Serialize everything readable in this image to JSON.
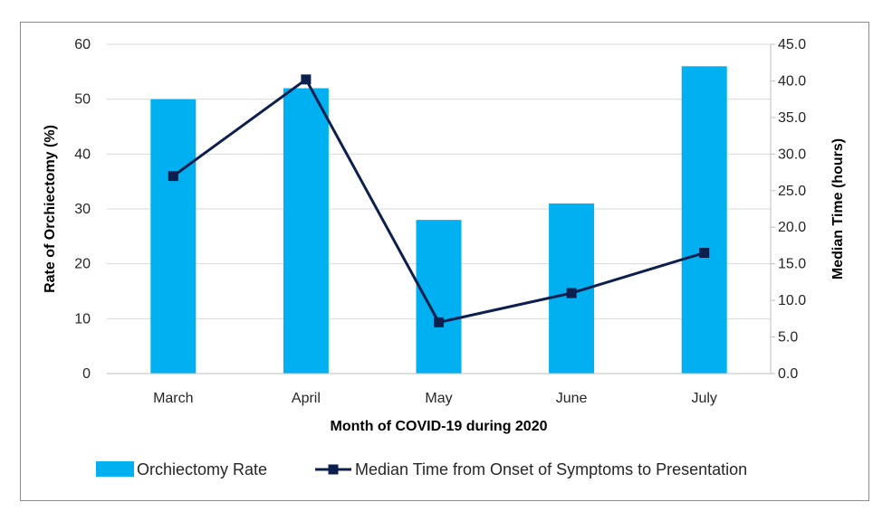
{
  "chart_data": {
    "type": "bar+line",
    "categories": [
      "March",
      "April",
      "May",
      "June",
      "July"
    ],
    "xlabel": "Month of COVID-19 during 2020",
    "ylabel_left": "Rate of Orchiectomy (%)",
    "ylabel_right": "Median Time (hours)",
    "ylim_left": [
      0,
      60
    ],
    "ylim_right": [
      0,
      45
    ],
    "yticks_left": [
      "0",
      "10",
      "20",
      "30",
      "40",
      "50",
      "60"
    ],
    "yticks_right": [
      "0.0",
      "5.0",
      "10.0",
      "15.0",
      "20.0",
      "25.0",
      "30.0",
      "35.0",
      "40.0",
      "45.0"
    ],
    "grid": true,
    "legend_position": "bottom",
    "series": [
      {
        "name": "Orchiectomy Rate",
        "kind": "bar",
        "axis": "left",
        "color": "#00B0F0",
        "values": [
          50,
          52,
          28,
          31,
          56
        ]
      },
      {
        "name": "Median Time from Onset of Symptoms to Presentation",
        "kind": "line",
        "axis": "right",
        "color": "#0D1F4F",
        "values": [
          27.0,
          40.2,
          7.0,
          11.0,
          16.5
        ]
      }
    ]
  }
}
